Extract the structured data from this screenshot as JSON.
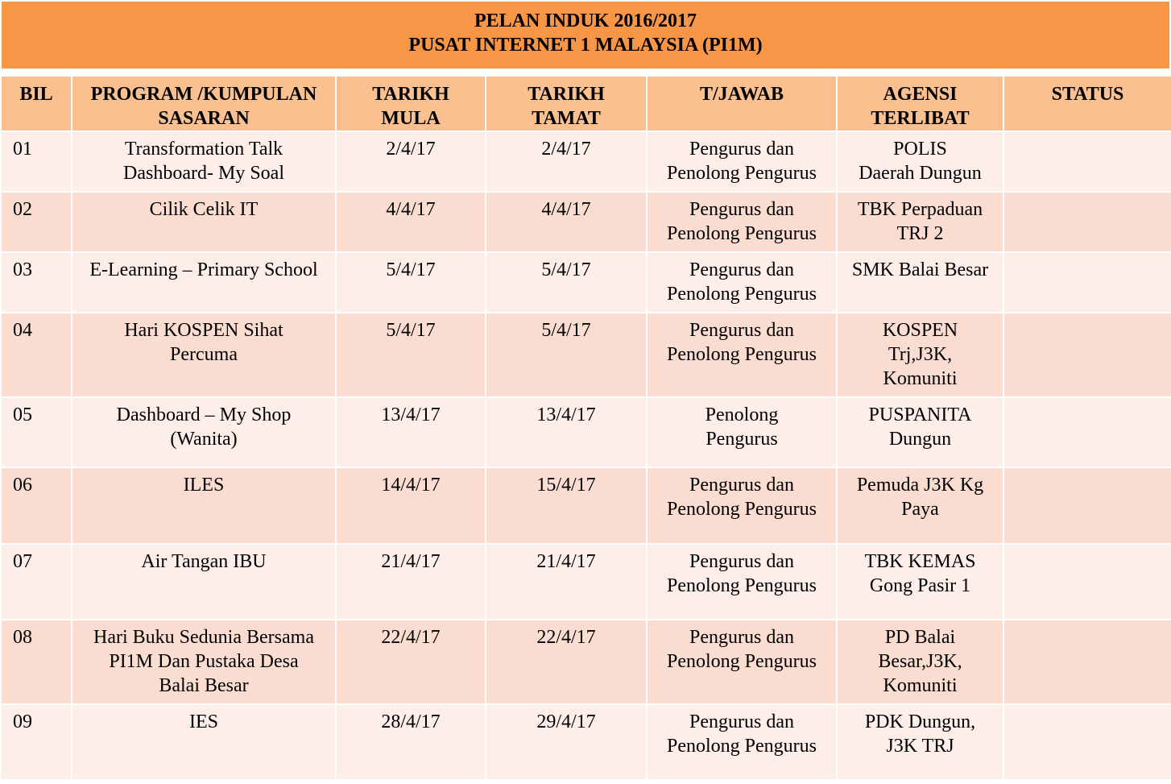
{
  "title": {
    "line1": "PELAN INDUK 2016/2017",
    "line2": "PUSAT INTERNET 1 MALAYSIA (PI1M)"
  },
  "colors": {
    "title_bg": "#f79646",
    "header_bg": "#fac090",
    "row_light": "#fdeeea",
    "row_dark": "#fbdcd1"
  },
  "table": {
    "headers": {
      "bil": [
        "BIL"
      ],
      "program": [
        "PROGRAM /KUMPULAN",
        "SASARAN"
      ],
      "mula": [
        "TARIKH",
        "MULA"
      ],
      "tamat": [
        "TARIKH",
        "TAMAT"
      ],
      "tjawab": [
        "T/JAWAB"
      ],
      "agensi": [
        "AGENSI",
        "TERLIBAT"
      ],
      "status": [
        "STATUS"
      ]
    },
    "rows": [
      {
        "bil": "01",
        "program": [
          "Transformation Talk",
          "Dashboard- My Soal"
        ],
        "mula": "2/4/17",
        "tamat": "2/4/17",
        "tjawab": [
          "Pengurus dan",
          "Penolong Pengurus"
        ],
        "agensi": [
          "POLIS",
          "Daerah Dungun"
        ],
        "status": ""
      },
      {
        "bil": "02",
        "program": [
          "Cilik  Celik IT"
        ],
        "mula": "4/4/17",
        "tamat": "4/4/17",
        "tjawab": [
          "Pengurus dan",
          "Penolong Pengurus"
        ],
        "agensi": [
          "TBK Perpaduan",
          "TRJ 2"
        ],
        "status": ""
      },
      {
        "bil": "03",
        "program": [
          "E-Learning – Primary School"
        ],
        "mula": "5/4/17",
        "tamat": "5/4/17",
        "tjawab": [
          "Pengurus dan",
          "Penolong Pengurus"
        ],
        "agensi": [
          "SMK Balai  Besar"
        ],
        "status": ""
      },
      {
        "bil": "04",
        "program": [
          "Hari KOSPEN Sihat",
          "Percuma"
        ],
        "mula": "5/4/17",
        "tamat": "5/4/17",
        "tjawab": [
          "Pengurus dan",
          "Penolong Pengurus"
        ],
        "agensi": [
          "KOSPEN",
          "Trj,J3K,",
          "Komuniti"
        ],
        "status": ""
      },
      {
        "bil": "05",
        "program": [
          "Dashboard – My Shop",
          "(Wanita)"
        ],
        "mula": "13/4/17",
        "tamat": "13/4/17",
        "tjawab": [
          "Penolong",
          "Pengurus"
        ],
        "agensi": [
          "PUSPANITA",
          "Dungun"
        ],
        "status": ""
      },
      {
        "bil": "06",
        "program": [
          "ILES"
        ],
        "mula": "14/4/17",
        "tamat": "15/4/17",
        "tjawab": [
          "Pengurus dan",
          "Penolong Pengurus"
        ],
        "agensi": [
          "Pemuda J3K Kg",
          "Paya"
        ],
        "status": ""
      },
      {
        "bil": "07",
        "program": [
          "Air Tangan IBU"
        ],
        "mula": "21/4/17",
        "tamat": "21/4/17",
        "tjawab": [
          "Pengurus dan",
          "Penolong Pengurus"
        ],
        "agensi": [
          "TBK KEMAS",
          "Gong Pasir 1"
        ],
        "status": ""
      },
      {
        "bil": "08",
        "program": [
          "Hari Buku Sedunia Bersama",
          "PI1M  Dan Pustaka Desa",
          "Balai Besar"
        ],
        "mula": "22/4/17",
        "tamat": "22/4/17",
        "tjawab": [
          "Pengurus dan",
          "Penolong Pengurus"
        ],
        "agensi": [
          "PD Balai",
          "Besar,J3K,",
          "Komuniti"
        ],
        "status": ""
      },
      {
        "bil": "09",
        "program": [
          "IES"
        ],
        "mula": "28/4/17",
        "tamat": "29/4/17",
        "tjawab": [
          "Pengurus dan",
          "Penolong Pengurus"
        ],
        "agensi": [
          "PDK Dungun,",
          "J3K TRJ"
        ],
        "status": ""
      }
    ]
  }
}
